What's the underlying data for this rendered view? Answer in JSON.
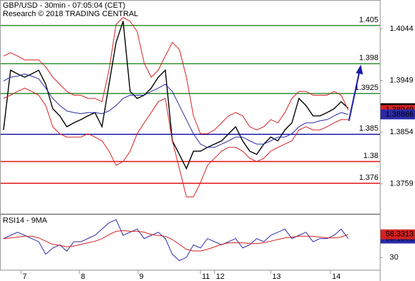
{
  "chart_data": [
    {
      "type": "line",
      "title": "GBP/USD - 30min - 07:05:04 (CET)",
      "subtitle": "Research © 2018 TRADING CENTRAL",
      "xlim": [
        0,
        49
      ],
      "ylim": [
        1.3703,
        1.4097
      ],
      "yticks": [
        1.4044,
        1.3949,
        1.3854,
        1.3759
      ],
      "x": [
        0,
        1,
        2,
        3,
        4,
        5,
        6,
        7,
        8,
        9,
        10,
        11,
        12,
        13,
        14,
        15,
        16,
        17,
        18,
        19,
        20,
        21,
        22,
        23,
        24,
        25,
        26,
        27,
        28,
        29,
        30,
        31,
        32,
        33,
        34,
        35,
        36,
        37,
        38,
        39,
        40,
        41,
        42,
        43,
        44,
        45,
        46,
        47,
        48,
        49
      ],
      "series": [
        {
          "color": "#000000",
          "last_label": true,
          "values": [
            1.3858,
            1.3968,
            1.3961,
            1.3955,
            1.3961,
            1.3968,
            1.3942,
            1.3897,
            1.3884,
            1.3864,
            1.3871,
            1.3877,
            1.3884,
            1.389,
            1.3864,
            1.3942,
            1.4019,
            1.4058,
            1.3929,
            1.3916,
            1.3922,
            1.3935,
            1.3955,
            1.3968,
            1.3838,
            1.3813,
            1.3787,
            1.3819,
            1.3819,
            1.3826,
            1.3832,
            1.3838,
            1.3851,
            1.3864,
            1.3838,
            1.3819,
            1.3813,
            1.3832,
            1.3845,
            1.3838,
            1.3858,
            1.3871,
            1.3916,
            1.3903,
            1.3884,
            1.3884,
            1.389,
            1.3897,
            1.391,
            1.3898
          ]
        },
        {
          "color": "#d42020",
          "last_label": true,
          "values": [
            1.3994,
            1.4,
            1.3994,
            1.3987,
            1.3987,
            1.3987,
            1.3974,
            1.3955,
            1.3942,
            1.3929,
            1.3922,
            1.3922,
            1.3916,
            1.3916,
            1.391,
            1.3968,
            1.4052,
            1.4065,
            1.4058,
            1.4039,
            1.3981,
            1.3955,
            1.3968,
            1.3994,
            1.4019,
            1.4006,
            1.3955,
            1.3884,
            1.3851,
            1.3851,
            1.3858,
            1.3871,
            1.3884,
            1.389,
            1.3884,
            1.3864,
            1.3858,
            1.3864,
            1.3877,
            1.3871,
            1.389,
            1.3916,
            1.3929,
            1.3929,
            1.3922,
            1.3922,
            1.3922,
            1.3929,
            1.3922,
            1.38949
          ]
        },
        {
          "color": "#d42020",
          "last_label": false,
          "values": [
            1.3916,
            1.3922,
            1.3929,
            1.3935,
            1.3929,
            1.3922,
            1.3903,
            1.3864,
            1.3851,
            1.3845,
            1.3845,
            1.3845,
            1.3851,
            1.3845,
            1.3838,
            1.3819,
            1.3793,
            1.38,
            1.3819,
            1.3851,
            1.3871,
            1.389,
            1.391,
            1.3916,
            1.3838,
            1.3787,
            1.3735,
            1.3735,
            1.3761,
            1.3793,
            1.3806,
            1.3819,
            1.3826,
            1.3826,
            1.3819,
            1.3806,
            1.38,
            1.3806,
            1.3819,
            1.3826,
            1.3832,
            1.3838,
            1.3858,
            1.3864,
            1.3858,
            1.3858,
            1.3864,
            1.3871,
            1.3877,
            1.3877
          ]
        },
        {
          "color": "#2a2aa8",
          "last_label": true,
          "values": [
            1.3948,
            1.3955,
            1.3957,
            1.3961,
            1.3957,
            1.3952,
            1.3935,
            1.3916,
            1.3903,
            1.3893,
            1.389,
            1.3888,
            1.389,
            1.389,
            1.3888,
            1.3893,
            1.3903,
            1.3916,
            1.3922,
            1.3922,
            1.3922,
            1.3929,
            1.3935,
            1.3942,
            1.3929,
            1.3903,
            1.3877,
            1.3851,
            1.3832,
            1.3826,
            1.3826,
            1.3832,
            1.3838,
            1.3845,
            1.3845,
            1.3838,
            1.3832,
            1.3832,
            1.3838,
            1.3845,
            1.3845,
            1.3851,
            1.3864,
            1.3871,
            1.3871,
            1.3875,
            1.3877,
            1.3884,
            1.389,
            1.38866
          ]
        }
      ],
      "levels": [
        {
          "value": 1.405,
          "color": "#2f8f2f"
        },
        {
          "value": 1.398,
          "color": "#2f8f2f"
        },
        {
          "value": 1.3925,
          "color": "#2f8f2f"
        },
        {
          "value": 1.385,
          "color": "#1a1aa8"
        },
        {
          "value": 1.38,
          "color": "#e01010"
        },
        {
          "value": 1.376,
          "color": "#e01010"
        }
      ]
    },
    {
      "type": "line",
      "title": "RSI14 - 9MA",
      "xlim": [
        0,
        49
      ],
      "ylim": [
        14,
        83
      ],
      "yticks": [
        30
      ],
      "x": [
        0,
        1,
        2,
        3,
        4,
        5,
        6,
        7,
        8,
        9,
        10,
        11,
        12,
        13,
        14,
        15,
        16,
        17,
        18,
        19,
        20,
        21,
        22,
        23,
        24,
        25,
        26,
        27,
        28,
        29,
        30,
        31,
        32,
        33,
        34,
        35,
        36,
        37,
        38,
        39,
        40,
        41,
        42,
        43,
        44,
        45,
        46,
        47,
        48,
        49
      ],
      "xticks": [
        {
          "value": 2.5,
          "label": "7"
        },
        {
          "value": 10.8,
          "label": "8"
        },
        {
          "value": 19.1,
          "label": "9"
        },
        {
          "value": 28,
          "label": "11"
        },
        {
          "value": 30,
          "label": "12"
        },
        {
          "value": 38,
          "label": "13"
        },
        {
          "value": 46.5,
          "label": "14"
        }
      ],
      "series": [
        {
          "color": "#2a2aa8",
          "last_label": true,
          "values": [
            53.2,
            57.1,
            60.9,
            57.1,
            53.2,
            49.3,
            33.9,
            41.6,
            45.5,
            37.7,
            49.3,
            49.3,
            53.2,
            57.1,
            64.8,
            72.5,
            76.4,
            57.1,
            60.9,
            64.8,
            53.2,
            57.1,
            60.9,
            53.2,
            33.9,
            26.1,
            30.0,
            45.5,
            41.6,
            53.2,
            49.3,
            45.5,
            49.3,
            53.2,
            41.6,
            45.5,
            53.2,
            49.3,
            57.1,
            60.9,
            64.8,
            53.2,
            57.1,
            60.9,
            49.3,
            53.2,
            53.2,
            57.1,
            64.8,
            53.1861
          ]
        },
        {
          "color": "#d42020",
          "last_label": true,
          "values": [
            53,
            54,
            55,
            56,
            56,
            54,
            50,
            46,
            45,
            43,
            44,
            46,
            48,
            50,
            53,
            58,
            62,
            63,
            62,
            62,
            61,
            58,
            57,
            56,
            52,
            46,
            40,
            38,
            38,
            40,
            43,
            46,
            48,
            48,
            48,
            47,
            47,
            48,
            50,
            52,
            54,
            55,
            56,
            56,
            56,
            55,
            54,
            54,
            55,
            58.3313
          ]
        }
      ]
    }
  ]
}
